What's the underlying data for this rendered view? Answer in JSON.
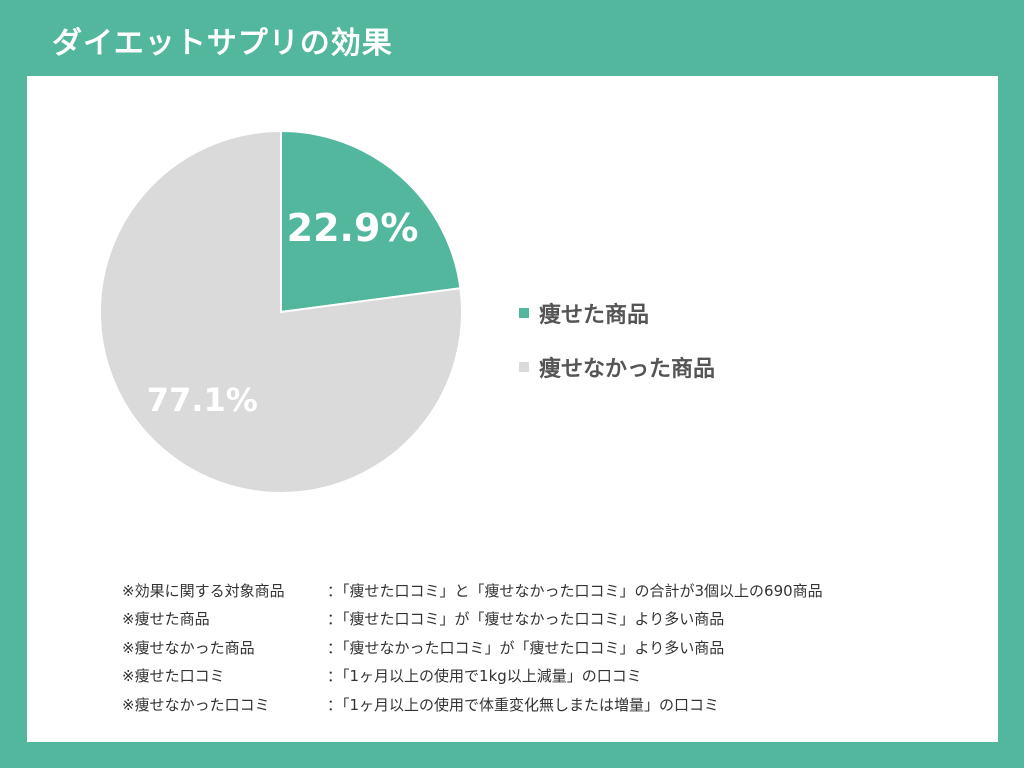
{
  "title": "ダイエットサプリの効果",
  "colors": {
    "background": "#52b79d",
    "panel": "#ffffff",
    "slimmed": "#52b79d",
    "not_slimmed": "#dadada"
  },
  "chart_data": {
    "type": "pie",
    "slices": [
      {
        "name": "痩せた商品",
        "value": 22.9,
        "label": "22.9%",
        "color": "#52b79d"
      },
      {
        "name": "痩せなかった商品",
        "value": 77.1,
        "label": "77.1%",
        "color": "#dadada"
      }
    ],
    "legend": [
      "痩せた商品",
      "痩せなかった商品"
    ],
    "legend_position": "right"
  },
  "notes": [
    {
      "term": "※効果に関する対象商品",
      "definition": "：「痩せた口コミ」と「痩せなかった口コミ」の合計が3個以上の690商品"
    },
    {
      "term": "※痩せた商品",
      "definition": "：「痩せた口コミ」が「痩せなかった口コミ」より多い商品"
    },
    {
      "term": "※痩せなかった商品",
      "definition": "：「痩せなかった口コミ」が「痩せた口コミ」より多い商品"
    },
    {
      "term": "※痩せた口コミ",
      "definition": "：「1ヶ月以上の使用で1kg以上減量」の口コミ"
    },
    {
      "term": "※痩せなかった口コミ",
      "definition": "：「1ヶ月以上の使用で体重変化無しまたは増量」の口コミ"
    }
  ]
}
